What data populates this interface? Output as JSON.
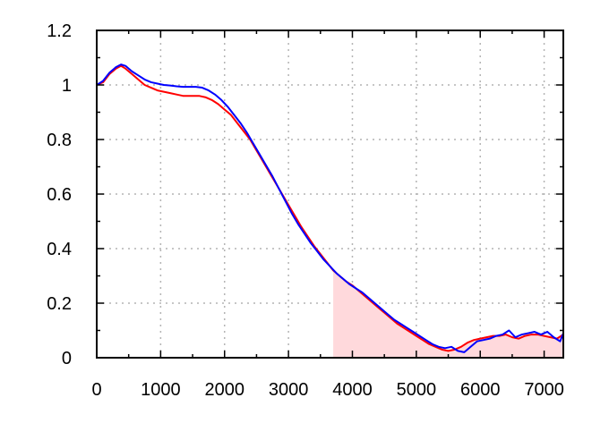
{
  "chart_data": {
    "type": "line",
    "title": "",
    "xlabel": "",
    "ylabel": "",
    "xlim": [
      0,
      7300
    ],
    "ylim": [
      0,
      1.2
    ],
    "x_ticks": [
      0,
      1000,
      2000,
      3000,
      4000,
      5000,
      6000,
      7000
    ],
    "x_tick_labels": [
      "0",
      "1000",
      "2000",
      "3000",
      "4000",
      "5000",
      "6000",
      "7000"
    ],
    "y_ticks": [
      0,
      0.2,
      0.4,
      0.6,
      0.8,
      1.0,
      1.2
    ],
    "y_tick_labels": [
      "0",
      "0.2",
      "0.4",
      "0.6",
      "0.8",
      "1",
      "1.2"
    ],
    "grid": true,
    "legend": "none",
    "shaded_region": {
      "x_start": 3700,
      "x_end": 7300,
      "under_series": "red",
      "color": "#ffd9dc"
    },
    "series": [
      {
        "color": "#ff0000",
        "x": [
          0,
          100,
          200,
          300,
          380,
          450,
          550,
          650,
          750,
          850,
          950,
          1050,
          1150,
          1250,
          1350,
          1500,
          1600,
          1700,
          1800,
          1900,
          2000,
          2100,
          2200,
          2300,
          2400,
          2500,
          2600,
          2700,
          2800,
          2900,
          3000,
          3100,
          3200,
          3300,
          3400,
          3500,
          3600,
          3700,
          3800,
          3900,
          4000,
          4100,
          4200,
          4300,
          4400,
          4500,
          4600,
          4700,
          4800,
          4900,
          5000,
          5100,
          5200,
          5300,
          5400,
          5500,
          5600,
          5700,
          5800,
          5900,
          6000,
          6100,
          6200,
          6300,
          6400,
          6500,
          6600,
          6700,
          6800,
          6900,
          7000,
          7100,
          7200,
          7300
        ],
        "values": [
          1.0,
          1.01,
          1.04,
          1.06,
          1.07,
          1.06,
          1.04,
          1.02,
          1.0,
          0.99,
          0.98,
          0.975,
          0.97,
          0.965,
          0.96,
          0.96,
          0.96,
          0.955,
          0.945,
          0.93,
          0.91,
          0.89,
          0.86,
          0.83,
          0.8,
          0.76,
          0.72,
          0.68,
          0.64,
          0.6,
          0.56,
          0.52,
          0.48,
          0.445,
          0.41,
          0.38,
          0.35,
          0.32,
          0.3,
          0.28,
          0.265,
          0.245,
          0.225,
          0.205,
          0.185,
          0.165,
          0.145,
          0.125,
          0.11,
          0.095,
          0.08,
          0.065,
          0.05,
          0.04,
          0.03,
          0.025,
          0.03,
          0.04,
          0.055,
          0.065,
          0.07,
          0.075,
          0.08,
          0.08,
          0.085,
          0.075,
          0.07,
          0.08,
          0.085,
          0.085,
          0.08,
          0.075,
          0.07,
          0.085
        ]
      },
      {
        "color": "#0000ff",
        "x": [
          0,
          100,
          200,
          300,
          380,
          450,
          550,
          650,
          750,
          850,
          950,
          1050,
          1150,
          1250,
          1350,
          1450,
          1550,
          1650,
          1750,
          1850,
          1950,
          2050,
          2150,
          2250,
          2350,
          2450,
          2550,
          2650,
          2750,
          2850,
          2950,
          3050,
          3150,
          3250,
          3350,
          3450,
          3550,
          3650,
          3750,
          3850,
          3950,
          4050,
          4150,
          4250,
          4350,
          4450,
          4550,
          4650,
          4750,
          4850,
          4950,
          5050,
          5150,
          5250,
          5350,
          5450,
          5550,
          5650,
          5750,
          5850,
          5950,
          6050,
          6150,
          6250,
          6350,
          6450,
          6550,
          6650,
          6750,
          6850,
          6950,
          7050,
          7150,
          7250,
          7300
        ],
        "values": [
          1.0,
          1.015,
          1.045,
          1.065,
          1.075,
          1.07,
          1.05,
          1.035,
          1.02,
          1.01,
          1.005,
          1.0,
          0.998,
          0.995,
          0.993,
          0.993,
          0.993,
          0.99,
          0.98,
          0.965,
          0.945,
          0.92,
          0.89,
          0.86,
          0.825,
          0.785,
          0.745,
          0.705,
          0.665,
          0.62,
          0.575,
          0.53,
          0.49,
          0.455,
          0.42,
          0.39,
          0.36,
          0.335,
          0.31,
          0.29,
          0.27,
          0.255,
          0.24,
          0.22,
          0.2,
          0.18,
          0.16,
          0.14,
          0.125,
          0.11,
          0.095,
          0.08,
          0.065,
          0.05,
          0.04,
          0.035,
          0.04,
          0.025,
          0.02,
          0.04,
          0.06,
          0.065,
          0.07,
          0.08,
          0.085,
          0.1,
          0.075,
          0.085,
          0.09,
          0.095,
          0.085,
          0.095,
          0.075,
          0.06,
          0.09
        ]
      }
    ]
  }
}
